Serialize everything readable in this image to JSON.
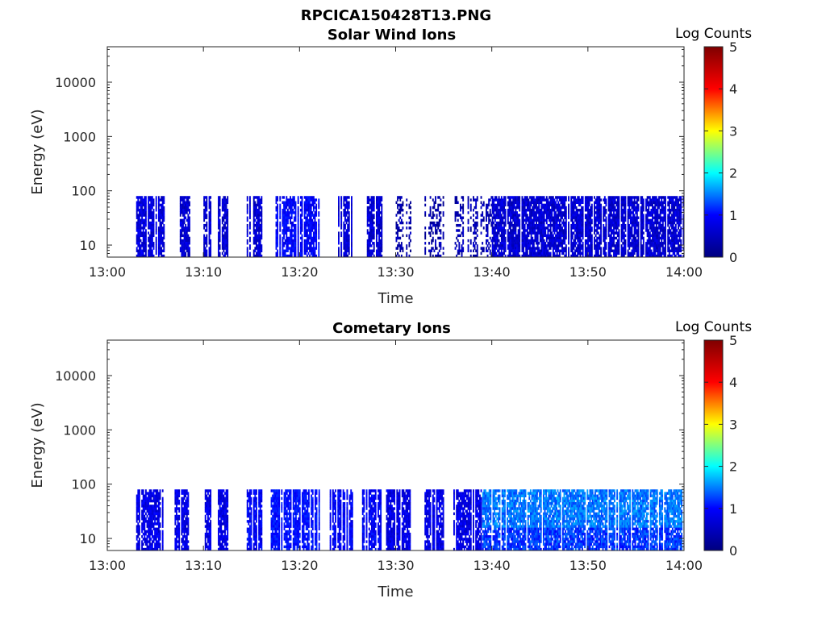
{
  "figure": {
    "title": "RPCICA150428T13.PNG",
    "colorbar_stops": [
      "#00007f",
      "#0000ff",
      "#00ffff",
      "#ffff00",
      "#ff0000",
      "#7f0000"
    ]
  },
  "chart_data": [
    {
      "type": "heatmap",
      "title": "Solar Wind Ions",
      "xlabel": "Time",
      "ylabel": "Energy (eV)",
      "x_ticks": [
        "13:00",
        "13:10",
        "13:20",
        "13:30",
        "13:40",
        "13:50",
        "14:00"
      ],
      "xlim": [
        "13:00",
        "14:00"
      ],
      "y_ticks": [
        "10",
        "100",
        "1000",
        "10000"
      ],
      "ylim": [
        6,
        45000
      ],
      "yscale": "log",
      "colorbar": {
        "label": "Log Counts",
        "ticks": [
          "0",
          "1",
          "2",
          "3",
          "4",
          "5"
        ],
        "range": [
          0,
          5
        ]
      },
      "data_time_range": [
        "13:03",
        "14:00"
      ],
      "data_energy_range": [
        6,
        80
      ],
      "active_intervals": [
        [
          "13:03",
          "13:06",
          0.45
        ],
        [
          "13:07",
          "13:08.5",
          0.4
        ],
        [
          "13:10",
          "13:10.7",
          0.4
        ],
        [
          "13:11.5",
          "13:12.5",
          0.4
        ],
        [
          "13:14.5",
          "13:16",
          0.4
        ],
        [
          "13:17.5",
          "13:22",
          0.6
        ],
        [
          "13:24",
          "13:25.5",
          0.4
        ],
        [
          "13:27",
          "13:28.5",
          0.4
        ],
        [
          "13:30",
          "13:31.5",
          0.2
        ],
        [
          "13:33",
          "13:35",
          0.2
        ],
        [
          "13:36",
          "13:40",
          0.25
        ],
        [
          "13:40",
          "14:00",
          0.4
        ]
      ]
    },
    {
      "type": "heatmap",
      "title": "Cometary Ions",
      "xlabel": "Time",
      "ylabel": "Energy (eV)",
      "x_ticks": [
        "13:00",
        "13:10",
        "13:20",
        "13:30",
        "13:40",
        "13:50",
        "14:00"
      ],
      "xlim": [
        "13:00",
        "14:00"
      ],
      "y_ticks": [
        "10",
        "100",
        "1000",
        "10000"
      ],
      "ylim": [
        6,
        45000
      ],
      "yscale": "log",
      "colorbar": {
        "label": "Log Counts",
        "ticks": [
          "0",
          "1",
          "2",
          "3",
          "4",
          "5"
        ],
        "range": [
          0,
          5
        ]
      },
      "data_time_range": [
        "13:03",
        "14:00"
      ],
      "data_energy_range": [
        6,
        80
      ],
      "active_intervals": [
        [
          "13:03",
          "13:06",
          0.5
        ],
        [
          "13:07",
          "13:08.5",
          0.5
        ],
        [
          "13:10",
          "13:10.7",
          0.5
        ],
        [
          "13:11.5",
          "13:12.5",
          0.5
        ],
        [
          "13:14.5",
          "13:16",
          0.6
        ],
        [
          "13:17",
          "13:22",
          0.7
        ],
        [
          "13:23",
          "13:25.5",
          0.6
        ],
        [
          "13:26.5",
          "13:28.5",
          0.6
        ],
        [
          "13:29",
          "13:31.5",
          0.5
        ],
        [
          "13:33",
          "13:35",
          0.5
        ],
        [
          "13:36",
          "13:39",
          0.5
        ],
        [
          "13:39",
          "14:00",
          1.1
        ]
      ]
    }
  ]
}
